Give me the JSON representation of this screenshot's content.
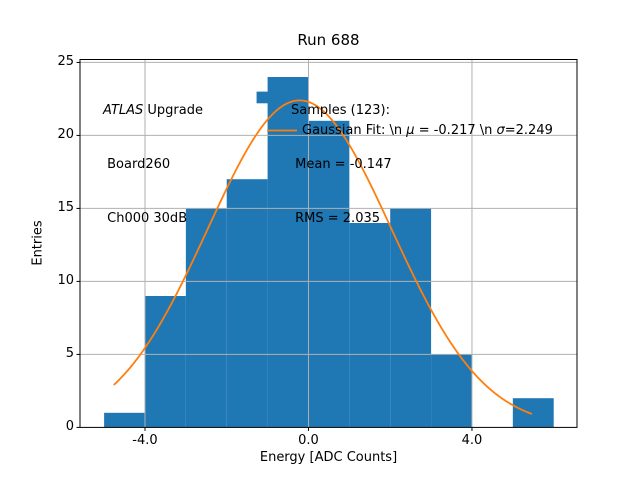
{
  "figure": {
    "title": "Run 688"
  },
  "axes": {
    "xlabel": "Energy [ADC Counts]",
    "ylabel": "Entries",
    "x_tick_labels": [
      "-4.0",
      "0.0",
      "4.0"
    ],
    "x_tick_values": [
      -4.0,
      0.0,
      4.0
    ],
    "y_tick_labels": [
      "0",
      "5",
      "10",
      "15",
      "20",
      "25"
    ],
    "y_tick_values": [
      0,
      5,
      10,
      15,
      20,
      25
    ]
  },
  "annotations": {
    "detector": {
      "line1_parts": [
        {
          "t": "ATLAS",
          "i": true
        },
        {
          "t": " Upgrade",
          "i": false
        }
      ],
      "line2": " Board260",
      "line3": " Ch000 30dB"
    },
    "stats": {
      "line1": "Samples (123):",
      "line2": " Mean = -0.147",
      "line3": " RMS = 2.035"
    }
  },
  "legend": {
    "entry_parts": [
      {
        "t": "Gaussian Fit: \\n ",
        "i": false
      },
      {
        "t": "μ",
        "i": true
      },
      {
        "t": " = -0.217 \\n ",
        "i": false
      },
      {
        "t": "σ",
        "i": true
      },
      {
        "t": "=2.249",
        "i": false
      }
    ],
    "sample_color": "#ff7f0e"
  },
  "colors": {
    "bar": "#1f77b4",
    "curve": "#ff7f0e",
    "grid": "#b0b0b0",
    "spine": "#000000",
    "background": "#ffffff"
  },
  "chart_data": {
    "type": "bar",
    "subtype": "histogram-with-gaussian-fit",
    "title": "Run 688",
    "xlabel": "Energy [ADC Counts]",
    "ylabel": "Entries",
    "xlim": [
      -5.59,
      6.57
    ],
    "ylim": [
      0,
      25.2
    ],
    "x_ticks": [
      -4.0,
      0.0,
      4.0
    ],
    "y_ticks": [
      0,
      5,
      10,
      15,
      20,
      25
    ],
    "grid": true,
    "legend_position": "upper-right-inside-frameless",
    "histogram": {
      "bin_edges": [
        -5,
        -4,
        -3,
        -2,
        -1,
        0,
        1,
        2,
        3,
        4,
        5,
        6
      ],
      "counts": [
        1,
        9,
        15,
        17,
        24,
        21,
        14,
        15,
        5,
        0,
        2
      ],
      "color": "#1f77b4",
      "total_samples": 123,
      "mean": -0.147,
      "rms": 2.035
    },
    "fit_curve": {
      "type": "gaussian",
      "mu": -0.217,
      "sigma": 2.249,
      "amplitude": 22.4,
      "x_start": -4.75,
      "x_end": 5.45,
      "color": "#ff7f0e"
    },
    "overlay_patch": {
      "x0": -1.27,
      "x1": -0.98,
      "y0": 22.2,
      "y1": 23.0,
      "color": "#1f77b4"
    }
  }
}
